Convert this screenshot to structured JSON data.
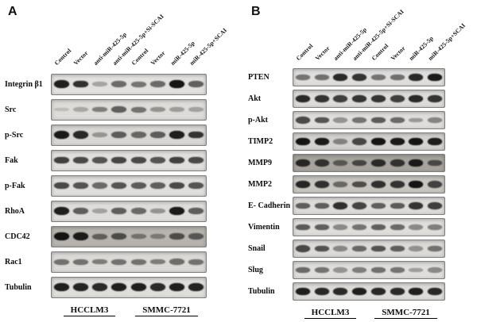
{
  "figure": {
    "panels": [
      {
        "id": "A",
        "label": "A",
        "lane_labels": [
          "Control",
          "Vector",
          "anti-miR-425-5p",
          "anti-miR-425-5p+Si-SCAI",
          "Control",
          "Vector",
          "miR-425-5p",
          "miR-425-5p+SCAI"
        ],
        "cell_lines": [
          "HCCLM3",
          "SMMC-7721"
        ],
        "rows": [
          {
            "protein": "Integrin β1",
            "bg": "#e3e1de",
            "bands": [
              0.9,
              0.82,
              0.28,
              0.55,
              0.5,
              0.55,
              0.95,
              0.6
            ]
          },
          {
            "protein": "Src",
            "bg": "#dedcd9",
            "bands": [
              0.15,
              0.25,
              0.45,
              0.6,
              0.5,
              0.35,
              0.3,
              0.28
            ]
          },
          {
            "protein": "p-Src",
            "bg": "#d9d7d4",
            "bands": [
              0.92,
              0.85,
              0.32,
              0.6,
              0.55,
              0.6,
              0.9,
              0.8
            ]
          },
          {
            "protein": "Fak",
            "bg": "#e1dfdc",
            "bands": [
              0.75,
              0.7,
              0.65,
              0.72,
              0.7,
              0.65,
              0.75,
              0.7
            ]
          },
          {
            "protein": "p-Fak",
            "bg": "#e1dfdc",
            "bands": [
              0.7,
              0.65,
              0.55,
              0.65,
              0.62,
              0.6,
              0.7,
              0.65
            ]
          },
          {
            "protein": "RhoA",
            "bg": "#dfddda",
            "bands": [
              0.9,
              0.6,
              0.28,
              0.6,
              0.55,
              0.35,
              0.92,
              0.6
            ]
          },
          {
            "protein": "CDC42",
            "bg": "#b7b4ae",
            "bands": [
              0.95,
              0.9,
              0.5,
              0.62,
              0.4,
              0.35,
              0.62,
              0.55
            ]
          },
          {
            "protein": "Rac1",
            "bg": "#dcdad7",
            "bands": [
              0.5,
              0.5,
              0.45,
              0.5,
              0.5,
              0.45,
              0.52,
              0.5
            ]
          },
          {
            "protein": "Tubulin",
            "bg": "#e0dedb",
            "bands": [
              0.9,
              0.88,
              0.85,
              0.9,
              0.9,
              0.85,
              0.9,
              0.88
            ]
          }
        ]
      },
      {
        "id": "B",
        "label": "B",
        "lane_labels": [
          "Control",
          "Vector",
          "anti-miR-425-5p",
          "anti-miR-425-5p+Si-SCAI",
          "Control",
          "Vector",
          "miR-425-5p",
          "miR-425-5p+SCAI"
        ],
        "cell_lines": [
          "HCCLM3",
          "SMMC-7721"
        ],
        "rows": [
          {
            "protein": "PTEN",
            "bg": "#e0dedb",
            "bands": [
              0.5,
              0.52,
              0.85,
              0.8,
              0.5,
              0.52,
              0.85,
              0.92
            ]
          },
          {
            "protein": "Akt",
            "bg": "#dedcd9",
            "bands": [
              0.85,
              0.8,
              0.75,
              0.8,
              0.8,
              0.75,
              0.85,
              0.8
            ]
          },
          {
            "protein": "p-Akt",
            "bg": "#e0dedb",
            "bands": [
              0.7,
              0.65,
              0.35,
              0.5,
              0.62,
              0.55,
              0.32,
              0.42
            ]
          },
          {
            "protein": "TIMP2",
            "bg": "#d4d2cf",
            "bands": [
              0.95,
              0.92,
              0.4,
              0.7,
              0.95,
              0.92,
              0.95,
              0.9
            ]
          },
          {
            "protein": "MMP9",
            "bg": "#a7a49d",
            "bands": [
              0.82,
              0.75,
              0.5,
              0.62,
              0.8,
              0.75,
              0.9,
              0.6
            ]
          },
          {
            "protein": "MMP2",
            "bg": "#c9c6c0",
            "bands": [
              0.85,
              0.8,
              0.5,
              0.65,
              0.8,
              0.78,
              0.95,
              0.7
            ]
          },
          {
            "protein": "E- Cadherin",
            "bg": "#dedcd9",
            "bands": [
              0.6,
              0.6,
              0.82,
              0.72,
              0.6,
              0.62,
              0.8,
              0.75
            ]
          },
          {
            "protein": "Vimentin",
            "bg": "#e0dedb",
            "bands": [
              0.62,
              0.6,
              0.4,
              0.5,
              0.6,
              0.55,
              0.4,
              0.45
            ]
          },
          {
            "protein": "Snail",
            "bg": "#dcdad7",
            "bands": [
              0.7,
              0.65,
              0.4,
              0.55,
              0.65,
              0.6,
              0.35,
              0.5
            ]
          },
          {
            "protein": "Slug",
            "bg": "#e0dedb",
            "bands": [
              0.55,
              0.5,
              0.35,
              0.45,
              0.52,
              0.5,
              0.3,
              0.4
            ]
          },
          {
            "protein": "Tubulin",
            "bg": "#dedcd9",
            "bands": [
              0.9,
              0.86,
              0.85,
              0.9,
              0.86,
              0.85,
              0.9,
              0.86
            ]
          }
        ]
      }
    ]
  }
}
